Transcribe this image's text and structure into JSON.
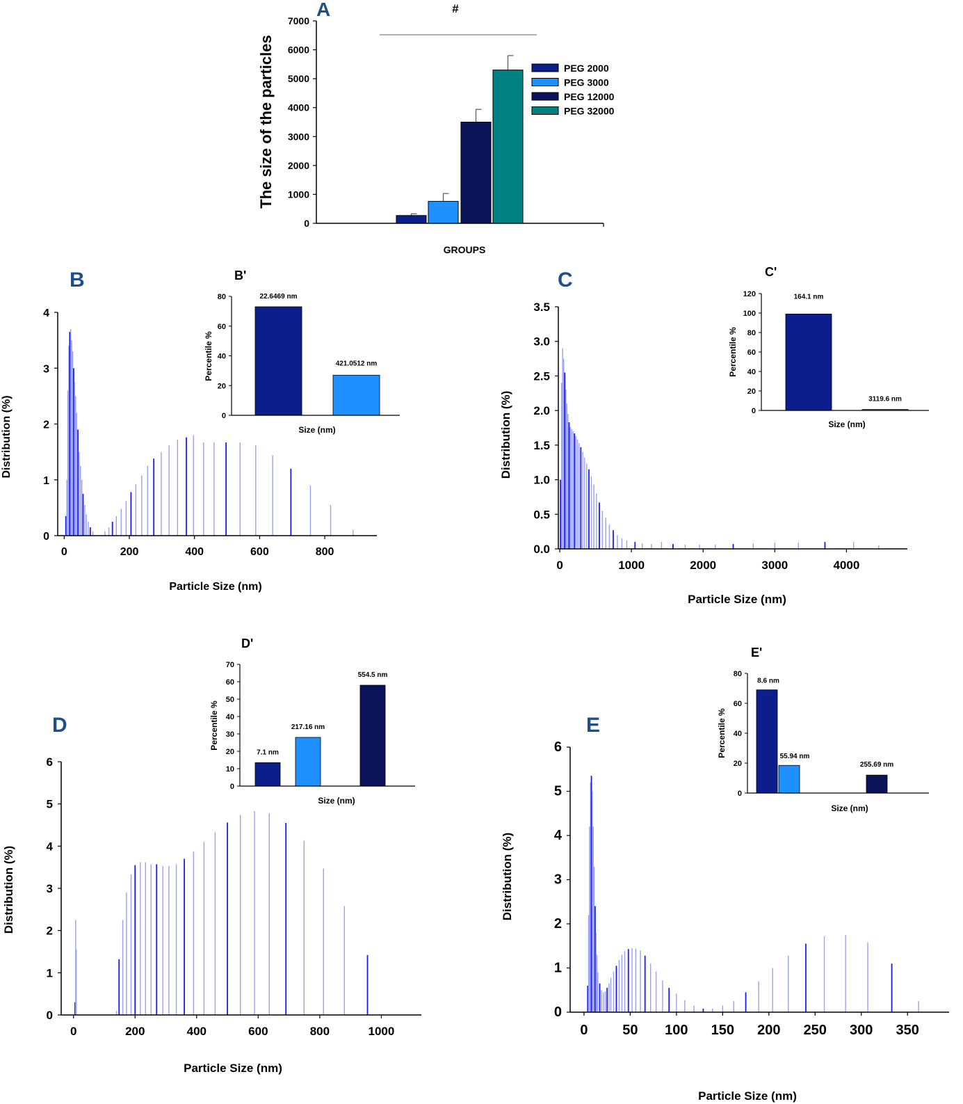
{
  "chart_data": [
    {
      "panel": "A",
      "type": "bar",
      "ylabel": "The size of the particles",
      "xlabel": "GROUPS",
      "ylim": [
        0,
        7000
      ],
      "yticks": [
        0,
        1000,
        2000,
        3000,
        4000,
        5000,
        6000,
        7000
      ],
      "annotation": "#",
      "legend_position": "right",
      "series": [
        {
          "name": "PEG 2000",
          "value": 270,
          "error": 60,
          "color": "#0b1e8c"
        },
        {
          "name": "PEG 3000",
          "value": 760,
          "error": 270,
          "color": "#1e90ff"
        },
        {
          "name": "PEG 12000",
          "value": 3500,
          "error": 440,
          "color": "#0a1258"
        },
        {
          "name": "PEG 32000",
          "value": 5300,
          "error": 500,
          "color": "#008080"
        }
      ]
    },
    {
      "panel": "B",
      "type": "bar",
      "xlabel": "Particle Size (nm)",
      "ylabel": "Distribution (%)",
      "xlim": [
        -20,
        960
      ],
      "ylim": [
        0,
        4
      ],
      "xticks": [
        0,
        200,
        400,
        600,
        800
      ],
      "yticks": [
        0,
        1,
        2,
        3,
        4
      ],
      "peaks": [
        {
          "x": 5,
          "y": 0.35
        },
        {
          "x": 8,
          "y": 1.0
        },
        {
          "x": 11,
          "y": 2.6
        },
        {
          "x": 14,
          "y": 3.4
        },
        {
          "x": 17,
          "y": 3.65
        },
        {
          "x": 20,
          "y": 3.7
        },
        {
          "x": 23,
          "y": 3.5
        },
        {
          "x": 26,
          "y": 3.3
        },
        {
          "x": 29,
          "y": 3.0
        },
        {
          "x": 32,
          "y": 2.75
        },
        {
          "x": 35,
          "y": 2.5
        },
        {
          "x": 38,
          "y": 2.2
        },
        {
          "x": 42,
          "y": 1.9
        },
        {
          "x": 46,
          "y": 1.5
        },
        {
          "x": 50,
          "y": 1.25
        },
        {
          "x": 54,
          "y": 1.0
        },
        {
          "x": 58,
          "y": 0.75
        },
        {
          "x": 63,
          "y": 0.55
        },
        {
          "x": 68,
          "y": 0.38
        },
        {
          "x": 74,
          "y": 0.25
        },
        {
          "x": 80,
          "y": 0.15
        },
        {
          "x": 88,
          "y": 0.08
        },
        {
          "x": 125,
          "y": 0.08
        },
        {
          "x": 137,
          "y": 0.15
        },
        {
          "x": 148,
          "y": 0.25
        },
        {
          "x": 160,
          "y": 0.35
        },
        {
          "x": 175,
          "y": 0.48
        },
        {
          "x": 190,
          "y": 0.62
        },
        {
          "x": 205,
          "y": 0.78
        },
        {
          "x": 220,
          "y": 0.92
        },
        {
          "x": 238,
          "y": 1.08
        },
        {
          "x": 256,
          "y": 1.25
        },
        {
          "x": 275,
          "y": 1.38
        },
        {
          "x": 298,
          "y": 1.5
        },
        {
          "x": 322,
          "y": 1.62
        },
        {
          "x": 348,
          "y": 1.72
        },
        {
          "x": 375,
          "y": 1.76
        },
        {
          "x": 397,
          "y": 1.8
        },
        {
          "x": 428,
          "y": 1.67
        },
        {
          "x": 460,
          "y": 1.67
        },
        {
          "x": 497,
          "y": 1.67
        },
        {
          "x": 540,
          "y": 1.67
        },
        {
          "x": 588,
          "y": 1.62
        },
        {
          "x": 640,
          "y": 1.44
        },
        {
          "x": 696,
          "y": 1.2
        },
        {
          "x": 756,
          "y": 0.9
        },
        {
          "x": 818,
          "y": 0.55
        },
        {
          "x": 887,
          "y": 0.1
        }
      ]
    },
    {
      "panel": "B'",
      "type": "bar",
      "xlabel": "Size (nm)",
      "ylabel": "Percentile %",
      "ylim": [
        0,
        80
      ],
      "yticks": [
        0,
        20,
        40,
        60,
        80
      ],
      "bars": [
        {
          "label": "22.6469 nm",
          "value": 73,
          "color": "#0b1e8c"
        },
        {
          "label": "421.0512 nm",
          "value": 27,
          "color": "#1e90ff"
        }
      ]
    },
    {
      "panel": "C",
      "type": "bar",
      "xlabel": "Particle Size (nm)",
      "ylabel": "Distribution (%)",
      "xlim": [
        -20,
        4850
      ],
      "ylim": [
        0,
        3.5
      ],
      "xticks": [
        0,
        1000,
        2000,
        3000,
        4000
      ],
      "yticks": [
        0.0,
        0.5,
        1.0,
        1.5,
        2.0,
        2.5,
        3.0,
        3.5
      ],
      "yticks_text": [
        "0.0",
        "0.5",
        "1.0",
        "1.5",
        "2.0",
        "2.5",
        "3.0",
        "3.5"
      ],
      "peaks": [
        {
          "x": 10,
          "y": 1.0
        },
        {
          "x": 25,
          "y": 2.4
        },
        {
          "x": 40,
          "y": 2.9
        },
        {
          "x": 55,
          "y": 2.75
        },
        {
          "x": 70,
          "y": 2.55
        },
        {
          "x": 85,
          "y": 2.3
        },
        {
          "x": 100,
          "y": 2.1
        },
        {
          "x": 115,
          "y": 1.95
        },
        {
          "x": 130,
          "y": 1.83
        },
        {
          "x": 148,
          "y": 1.76
        },
        {
          "x": 166,
          "y": 1.73
        },
        {
          "x": 185,
          "y": 1.7
        },
        {
          "x": 205,
          "y": 1.67
        },
        {
          "x": 225,
          "y": 1.63
        },
        {
          "x": 247,
          "y": 1.58
        },
        {
          "x": 270,
          "y": 1.53
        },
        {
          "x": 294,
          "y": 1.47
        },
        {
          "x": 320,
          "y": 1.4
        },
        {
          "x": 347,
          "y": 1.32
        },
        {
          "x": 376,
          "y": 1.23
        },
        {
          "x": 407,
          "y": 1.15
        },
        {
          "x": 440,
          "y": 1.05
        },
        {
          "x": 475,
          "y": 0.93
        },
        {
          "x": 512,
          "y": 0.8
        },
        {
          "x": 552,
          "y": 0.67
        },
        {
          "x": 595,
          "y": 0.55
        },
        {
          "x": 642,
          "y": 0.45
        },
        {
          "x": 692,
          "y": 0.35
        },
        {
          "x": 746,
          "y": 0.27
        },
        {
          "x": 804,
          "y": 0.2
        },
        {
          "x": 867,
          "y": 0.15
        },
        {
          "x": 935,
          "y": 0.12
        },
        {
          "x": 1050,
          "y": 0.1
        },
        {
          "x": 1150,
          "y": 0.08
        },
        {
          "x": 1280,
          "y": 0.07
        },
        {
          "x": 1420,
          "y": 0.1
        },
        {
          "x": 1580,
          "y": 0.07
        },
        {
          "x": 1750,
          "y": 0.06
        },
        {
          "x": 1950,
          "y": 0.06
        },
        {
          "x": 2170,
          "y": 0.06
        },
        {
          "x": 2420,
          "y": 0.07
        },
        {
          "x": 2700,
          "y": 0.08
        },
        {
          "x": 3000,
          "y": 0.09
        },
        {
          "x": 3330,
          "y": 0.09
        },
        {
          "x": 3700,
          "y": 0.1
        },
        {
          "x": 4100,
          "y": 0.1
        },
        {
          "x": 4450,
          "y": 0.05
        }
      ]
    },
    {
      "panel": "C'",
      "type": "bar",
      "xlabel": "Size (nm)",
      "ylabel": "Percentile %",
      "ylim": [
        0,
        120
      ],
      "yticks": [
        0,
        20,
        40,
        60,
        80,
        100,
        120
      ],
      "bars": [
        {
          "label": "164.1 nm",
          "value": 99,
          "color": "#0b1e8c"
        },
        {
          "label": "3119.6 nm",
          "value": 1,
          "color": "#1e90ff"
        }
      ]
    },
    {
      "panel": "D",
      "type": "bar",
      "xlabel": "Particle Size (nm)",
      "ylabel": "Distribution (%)",
      "xlim": [
        -40,
        1130
      ],
      "ylim": [
        0,
        6
      ],
      "xticks": [
        0,
        200,
        400,
        600,
        800,
        1000
      ],
      "yticks": [
        0,
        1,
        2,
        3,
        4,
        5,
        6
      ],
      "peaks": [
        {
          "x": 5,
          "y": 0.3
        },
        {
          "x": 7,
          "y": 2.25
        },
        {
          "x": 9,
          "y": 1.55
        },
        {
          "x": 140,
          "y": 0.1
        },
        {
          "x": 148,
          "y": 1.32
        },
        {
          "x": 160,
          "y": 2.25
        },
        {
          "x": 172,
          "y": 2.9
        },
        {
          "x": 187,
          "y": 3.33
        },
        {
          "x": 200,
          "y": 3.55
        },
        {
          "x": 217,
          "y": 3.62
        },
        {
          "x": 234,
          "y": 3.62
        },
        {
          "x": 252,
          "y": 3.57
        },
        {
          "x": 270,
          "y": 3.57
        },
        {
          "x": 290,
          "y": 3.53
        },
        {
          "x": 310,
          "y": 3.53
        },
        {
          "x": 334,
          "y": 3.57
        },
        {
          "x": 360,
          "y": 3.7
        },
        {
          "x": 390,
          "y": 3.87
        },
        {
          "x": 424,
          "y": 4.1
        },
        {
          "x": 460,
          "y": 4.33
        },
        {
          "x": 500,
          "y": 4.56
        },
        {
          "x": 542,
          "y": 4.74
        },
        {
          "x": 588,
          "y": 4.83
        },
        {
          "x": 636,
          "y": 4.78
        },
        {
          "x": 690,
          "y": 4.55
        },
        {
          "x": 749,
          "y": 4.13
        },
        {
          "x": 812,
          "y": 3.47
        },
        {
          "x": 880,
          "y": 2.58
        },
        {
          "x": 955,
          "y": 1.42
        }
      ]
    },
    {
      "panel": "D'",
      "type": "bar",
      "xlabel": "Size (nm)",
      "ylabel": "Percentile %",
      "ylim": [
        0,
        70
      ],
      "yticks": [
        0,
        10,
        20,
        30,
        40,
        50,
        60,
        70
      ],
      "bars": [
        {
          "label": "7.1 nm",
          "value": 13.5,
          "color": "#0b1e8c"
        },
        {
          "label": "217.16 nm",
          "value": 28,
          "color": "#1e90ff"
        },
        {
          "label": "554.5 nm",
          "value": 58,
          "color": "#0a1258"
        }
      ]
    },
    {
      "panel": "E",
      "type": "bar",
      "xlabel": "Particle Size (nm)",
      "ylabel": "Distribution (%)",
      "xlim": [
        -15,
        395
      ],
      "ylim": [
        0,
        6
      ],
      "xticks": [
        0,
        50,
        100,
        150,
        200,
        250,
        300,
        350
      ],
      "yticks": [
        0,
        1,
        2,
        3,
        4,
        5,
        6
      ],
      "peaks": [
        {
          "x": 4,
          "y": 0.6
        },
        {
          "x": 5,
          "y": 2.2
        },
        {
          "x": 6,
          "y": 4.2
        },
        {
          "x": 7,
          "y": 5.2
        },
        {
          "x": 8,
          "y": 5.35
        },
        {
          "x": 9,
          "y": 5.0
        },
        {
          "x": 10,
          "y": 4.2
        },
        {
          "x": 11,
          "y": 3.3
        },
        {
          "x": 12,
          "y": 2.4
        },
        {
          "x": 13,
          "y": 1.8
        },
        {
          "x": 14,
          "y": 1.3
        },
        {
          "x": 15,
          "y": 0.9
        },
        {
          "x": 17,
          "y": 0.65
        },
        {
          "x": 19,
          "y": 0.5
        },
        {
          "x": 21,
          "y": 0.45
        },
        {
          "x": 23,
          "y": 0.47
        },
        {
          "x": 25,
          "y": 0.55
        },
        {
          "x": 27,
          "y": 0.65
        },
        {
          "x": 29,
          "y": 0.78
        },
        {
          "x": 32,
          "y": 0.92
        },
        {
          "x": 35,
          "y": 1.05
        },
        {
          "x": 38,
          "y": 1.18
        },
        {
          "x": 41,
          "y": 1.3
        },
        {
          "x": 44,
          "y": 1.38
        },
        {
          "x": 48,
          "y": 1.43
        },
        {
          "x": 52,
          "y": 1.45
        },
        {
          "x": 56,
          "y": 1.44
        },
        {
          "x": 61,
          "y": 1.4
        },
        {
          "x": 66,
          "y": 1.28
        },
        {
          "x": 72,
          "y": 1.1
        },
        {
          "x": 78,
          "y": 0.92
        },
        {
          "x": 85,
          "y": 0.72
        },
        {
          "x": 92,
          "y": 0.55
        },
        {
          "x": 100,
          "y": 0.42
        },
        {
          "x": 109,
          "y": 0.27
        },
        {
          "x": 119,
          "y": 0.15
        },
        {
          "x": 129,
          "y": 0.08
        },
        {
          "x": 139,
          "y": 0.08
        },
        {
          "x": 150,
          "y": 0.15
        },
        {
          "x": 162,
          "y": 0.25
        },
        {
          "x": 175,
          "y": 0.45
        },
        {
          "x": 189,
          "y": 0.7
        },
        {
          "x": 204,
          "y": 1.0
        },
        {
          "x": 221,
          "y": 1.28
        },
        {
          "x": 240,
          "y": 1.55
        },
        {
          "x": 260,
          "y": 1.72
        },
        {
          "x": 283,
          "y": 1.75
        },
        {
          "x": 307,
          "y": 1.58
        },
        {
          "x": 333,
          "y": 1.1
        },
        {
          "x": 362,
          "y": 0.25
        }
      ]
    },
    {
      "panel": "E'",
      "type": "bar",
      "xlabel": "Size (nm)",
      "ylabel": "Percentile %",
      "ylim": [
        0,
        80
      ],
      "yticks": [
        0,
        20,
        40,
        60,
        80
      ],
      "bars": [
        {
          "label": "8.6 nm",
          "value": 69,
          "color": "#0b1e8c"
        },
        {
          "label": "55.94 nm",
          "value": 18.5,
          "color": "#1e90ff"
        },
        {
          "label": "255.69 nm",
          "value": 12,
          "color": "#0a1258"
        }
      ]
    }
  ],
  "colors": {
    "peak_light": "#9aa0f5",
    "peak_dark": "#1a1aff",
    "panel_letter": "#1f4e8c"
  }
}
